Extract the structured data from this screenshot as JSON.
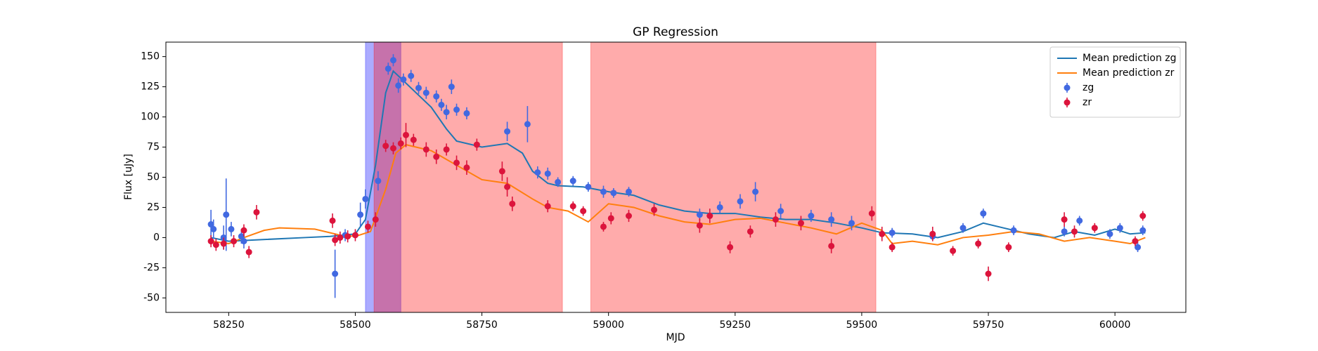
{
  "chart_data": {
    "type": "line",
    "title": "GP Regression",
    "x_label": "MJD",
    "y_label": "Flux [uJy]",
    "xlim": [
      58126,
      60140
    ],
    "ylim": [
      -62,
      162
    ],
    "xticks": [
      58250,
      58500,
      58750,
      59000,
      59250,
      59500,
      59750,
      60000
    ],
    "yticks": [
      -50,
      -25,
      0,
      25,
      50,
      75,
      100,
      125,
      150
    ],
    "legend": "upper right",
    "spans": [
      {
        "color": "#0000ff",
        "start": 58520,
        "end": 58590
      },
      {
        "color": "#ff0000",
        "start": 58537,
        "end": 58909
      },
      {
        "color": "#ff0000",
        "start": 58965,
        "end": 59528
      }
    ],
    "series": [
      {
        "name": "Mean prediction zg",
        "mode": "line",
        "color": "#1f77b4",
        "x": [
          58215,
          58250,
          58300,
          58400,
          58450,
          58500,
          58520,
          58540,
          58560,
          58575,
          58590,
          58620,
          58650,
          58680,
          58700,
          58750,
          58800,
          58830,
          58850,
          58880,
          58900,
          58950,
          59000,
          59050,
          59100,
          59150,
          59200,
          59250,
          59300,
          59350,
          59400,
          59450,
          59500,
          59540,
          59600,
          59650,
          59700,
          59740,
          59780,
          59830,
          59880,
          59920,
          59960,
          60000,
          60030,
          60060
        ],
        "values": [
          0,
          -3,
          -2,
          0,
          1,
          3,
          15,
          60,
          120,
          138,
          132,
          120,
          108,
          90,
          80,
          75,
          78,
          70,
          55,
          45,
          43,
          42,
          38,
          35,
          27,
          22,
          20,
          20,
          17,
          15,
          15,
          12,
          8,
          4,
          3,
          0,
          5,
          12,
          8,
          3,
          0,
          5,
          2,
          7,
          3,
          4
        ]
      },
      {
        "name": "Mean prediction zr",
        "mode": "line",
        "color": "#ff7f0e",
        "x": [
          58215,
          58250,
          58280,
          58320,
          58350,
          58420,
          58470,
          58500,
          58530,
          58560,
          58580,
          58600,
          58650,
          58700,
          58750,
          58800,
          58850,
          58880,
          58920,
          58960,
          59000,
          59050,
          59100,
          59150,
          59200,
          59250,
          59300,
          59350,
          59400,
          59450,
          59500,
          59540,
          59560,
          59600,
          59650,
          59700,
          59750,
          59800,
          59850,
          59900,
          59950,
          60000,
          60030,
          60060
        ],
        "values": [
          -3,
          -5,
          0,
          6,
          8,
          7,
          2,
          1,
          5,
          40,
          70,
          77,
          72,
          60,
          48,
          45,
          32,
          25,
          22,
          13,
          28,
          25,
          18,
          13,
          11,
          15,
          16,
          12,
          8,
          3,
          12,
          6,
          -5,
          -3,
          -6,
          0,
          2,
          5,
          3,
          -3,
          0,
          -3,
          -5,
          0
        ]
      },
      {
        "name": "zg",
        "mode": "errorbar",
        "color": "#4169e1",
        "x": [
          58215,
          58220,
          58240,
          58245,
          58255,
          58275,
          58280,
          58460,
          58480,
          58510,
          58520,
          58545,
          58565,
          58575,
          58585,
          58595,
          58610,
          58625,
          58640,
          58660,
          58670,
          58680,
          58690,
          58700,
          58720,
          58800,
          58840,
          58860,
          58880,
          58900,
          58930,
          58960,
          58990,
          59010,
          59040,
          59180,
          59220,
          59260,
          59290,
          59340,
          59400,
          59440,
          59480,
          59560,
          59640,
          59700,
          59740,
          59800,
          59900,
          59930,
          59990,
          60010,
          60045,
          60055
        ],
        "values": [
          11,
          7,
          0,
          19,
          7,
          1,
          -3,
          -30,
          2,
          19,
          32,
          47,
          140,
          147,
          126,
          131,
          134,
          124,
          120,
          117,
          110,
          104,
          125,
          106,
          103,
          88,
          94,
          54,
          53,
          46,
          47,
          42,
          38,
          37,
          38,
          19,
          25,
          30,
          38,
          22,
          18,
          15,
          12,
          4,
          1,
          8,
          20,
          6,
          5,
          14,
          3,
          8,
          -8,
          6
        ],
        "errors": [
          12,
          8,
          10,
          30,
          6,
          6,
          6,
          20,
          5,
          10,
          8,
          8,
          5,
          5,
          6,
          5,
          5,
          5,
          5,
          5,
          5,
          6,
          6,
          5,
          5,
          8,
          15,
          5,
          5,
          4,
          4,
          4,
          5,
          4,
          4,
          5,
          5,
          6,
          8,
          6,
          5,
          6,
          6,
          4,
          4,
          4,
          4,
          4,
          4,
          4,
          4,
          4,
          4,
          4
        ]
      },
      {
        "name": "zr",
        "mode": "errorbar",
        "color": "#dc143c",
        "x": [
          58215,
          58225,
          58240,
          58260,
          58280,
          58290,
          58305,
          58455,
          58460,
          58470,
          58485,
          58500,
          58525,
          58540,
          58560,
          58575,
          58590,
          58600,
          58615,
          58640,
          58660,
          58680,
          58700,
          58720,
          58740,
          58790,
          58800,
          58810,
          58880,
          58930,
          58950,
          58990,
          59005,
          59040,
          59090,
          59180,
          59200,
          59240,
          59280,
          59330,
          59380,
          59440,
          59520,
          59540,
          59560,
          59640,
          59680,
          59730,
          59750,
          59790,
          59900,
          59920,
          59960,
          60040,
          60055
        ],
        "values": [
          -3,
          -6,
          -5,
          -3,
          6,
          -12,
          21,
          14,
          -2,
          0,
          1,
          2,
          9,
          15,
          76,
          74,
          78,
          85,
          81,
          73,
          67,
          73,
          62,
          58,
          77,
          55,
          42,
          28,
          26,
          26,
          22,
          9,
          16,
          18,
          23,
          10,
          18,
          -8,
          5,
          15,
          12,
          -7,
          20,
          3,
          -8,
          3,
          -11,
          -5,
          -30,
          -8,
          15,
          5,
          8,
          -3,
          18
        ],
        "errors": [
          5,
          5,
          5,
          5,
          5,
          5,
          6,
          6,
          5,
          5,
          5,
          5,
          5,
          6,
          5,
          5,
          5,
          10,
          5,
          6,
          6,
          5,
          6,
          6,
          5,
          8,
          8,
          6,
          5,
          4,
          4,
          4,
          5,
          5,
          5,
          6,
          6,
          5,
          5,
          6,
          6,
          6,
          6,
          6,
          4,
          6,
          4,
          4,
          6,
          4,
          6,
          5,
          4,
          4,
          4
        ]
      }
    ]
  }
}
